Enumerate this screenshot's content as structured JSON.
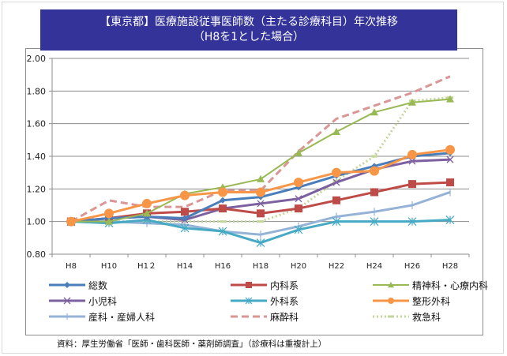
{
  "title": {
    "line1": "【東京都】医療施設従事医師数（主たる診療科目）年次推移",
    "line2": "（H8を1とした場合）"
  },
  "source": "資料：厚生労働省「医師・歯科医師・薬剤師調査」（診療科は重複計上）",
  "chart_data": {
    "type": "line",
    "title": "【東京都】医療施設従事医師数（主たる診療科目）年次推移（H8を1とした場合）",
    "xlabel": "",
    "ylabel": "",
    "ylim": [
      0.8,
      2.0
    ],
    "yticks": [
      "0.80",
      "1.00",
      "1.20",
      "1.40",
      "1.60",
      "1.80",
      "2.00"
    ],
    "ytick_values": [
      0.8,
      1.0,
      1.2,
      1.4,
      1.6,
      1.8,
      2.0
    ],
    "grid": true,
    "legend_position": "bottom",
    "categories": [
      "H8",
      "H10",
      "H1２",
      "H14",
      "H16",
      "H18",
      "H20",
      "H22",
      "H24",
      "H26",
      "H28"
    ],
    "series": [
      {
        "name": "総数",
        "color": "#4a7ebb",
        "marker": "diamond",
        "dash": "solid",
        "width": 3,
        "values": [
          1.0,
          1.02,
          1.03,
          1.02,
          1.13,
          1.15,
          1.21,
          1.28,
          1.34,
          1.4,
          1.42
        ]
      },
      {
        "name": "内科系",
        "color": "#be4b48",
        "marker": "square",
        "dash": "solid",
        "width": 3,
        "values": [
          1.0,
          1.02,
          1.05,
          1.06,
          1.08,
          1.05,
          1.08,
          1.13,
          1.18,
          1.23,
          1.24
        ]
      },
      {
        "name": "精神科・心療内科",
        "color": "#98b954",
        "marker": "triangle",
        "dash": "solid",
        "width": 2,
        "values": [
          1.0,
          1.0,
          1.05,
          1.17,
          1.21,
          1.26,
          1.42,
          1.55,
          1.67,
          1.73,
          1.75
        ]
      },
      {
        "name": "小児科",
        "color": "#7d60a0",
        "marker": "x",
        "dash": "solid",
        "width": 3,
        "values": [
          1.0,
          1.02,
          1.03,
          1.01,
          1.08,
          1.11,
          1.14,
          1.24,
          1.32,
          1.37,
          1.38
        ]
      },
      {
        "name": "外科系",
        "color": "#46aac5",
        "marker": "star",
        "dash": "solid",
        "width": 3,
        "values": [
          1.0,
          0.99,
          1.01,
          0.96,
          0.94,
          0.87,
          0.95,
          1.0,
          1.0,
          1.0,
          1.01
        ]
      },
      {
        "name": "整形外科",
        "color": "#f79646",
        "marker": "circle",
        "dash": "solid",
        "width": 3,
        "values": [
          1.0,
          1.05,
          1.11,
          1.16,
          1.18,
          1.18,
          1.24,
          1.3,
          1.31,
          1.41,
          1.44
        ]
      },
      {
        "name": "産科・産婦人科",
        "color": "#95b3d7",
        "marker": "plus",
        "dash": "solid",
        "width": 3,
        "values": [
          1.0,
          1.0,
          0.99,
          0.98,
          0.94,
          0.92,
          0.97,
          1.03,
          1.06,
          1.1,
          1.18
        ]
      },
      {
        "name": "麻酔科",
        "color": "#d99694",
        "marker": "none",
        "dash": "dash",
        "width": 3,
        "values": [
          1.0,
          1.13,
          1.09,
          1.09,
          1.19,
          1.19,
          1.43,
          1.63,
          1.71,
          1.79,
          1.89
        ]
      },
      {
        "name": "救急科",
        "color": "#c3d69b",
        "marker": "dash",
        "dash": "dot",
        "width": 3,
        "values": [
          1.0,
          1.0,
          1.0,
          1.0,
          1.0,
          1.0,
          1.08,
          1.25,
          1.4,
          1.74,
          1.76
        ]
      }
    ],
    "legend_order": [
      0,
      1,
      2,
      3,
      4,
      5,
      6,
      7,
      8
    ]
  }
}
